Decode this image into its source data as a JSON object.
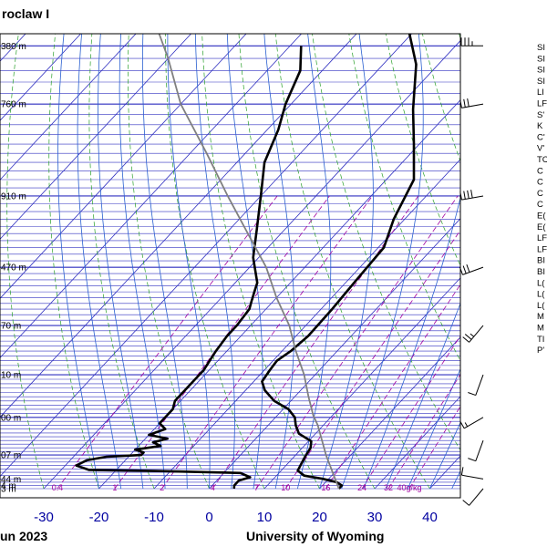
{
  "chart_data": {
    "type": "line",
    "title": "roclaw I",
    "footer_left": "un 2023",
    "footer_right": "University of Wyoming",
    "x_ticks": [
      -30,
      -20,
      -10,
      0,
      10,
      20,
      30,
      40
    ],
    "xlim": [
      -35,
      43
    ],
    "y_tick_labels": [
      {
        "p": 250,
        "label": "380 m"
      },
      {
        "p": 300,
        "label": "760 m"
      },
      {
        "p": 400,
        "label": "910 m"
      },
      {
        "p": 500,
        "label": "470 m"
      },
      {
        "p": 600,
        "label": "70 m"
      },
      {
        "p": 700,
        "label": "10 m"
      },
      {
        "p": 800,
        "label": "00 m"
      },
      {
        "p": 900,
        "label": "07 m"
      },
      {
        "p": 970,
        "label": "44 m"
      },
      {
        "p": 990,
        "label": "4 m"
      },
      {
        "p": 1000,
        "label": "3 m"
      }
    ],
    "mixing_ratio_labels": [
      "0.4",
      "1",
      "2",
      "4",
      "7",
      "10",
      "16",
      "24",
      "32",
      "40g/kg"
    ],
    "series": [
      {
        "role": "temperature",
        "color": "#000000",
        "points": [
          [
            23.5,
            1000
          ],
          [
            23.5,
            990
          ],
          [
            22,
            980
          ],
          [
            19,
            970
          ],
          [
            15,
            960
          ],
          [
            13,
            945
          ],
          [
            12.5,
            925
          ],
          [
            12,
            905
          ],
          [
            11.5,
            880
          ],
          [
            10.5,
            862
          ],
          [
            7,
            842
          ],
          [
            5,
            820
          ],
          [
            3.5,
            800
          ],
          [
            1,
            780
          ],
          [
            -3,
            760
          ],
          [
            -6.5,
            735
          ],
          [
            -8.5,
            715
          ],
          [
            -9,
            690
          ],
          [
            -9.3,
            670
          ],
          [
            -8.4,
            650
          ],
          [
            -7.8,
            620
          ],
          [
            -8,
            570
          ],
          [
            -8.5,
            520
          ],
          [
            -9,
            470
          ],
          [
            -12,
            430
          ],
          [
            -15,
            380
          ],
          [
            -21,
            340
          ],
          [
            -27,
            305
          ],
          [
            -34,
            265
          ],
          [
            -42,
            235
          ],
          [
            -48,
            212
          ]
        ]
      },
      {
        "role": "dewpoint",
        "color": "#000000",
        "points": [
          [
            4.5,
            1000
          ],
          [
            4,
            990
          ],
          [
            4,
            975
          ],
          [
            5.5,
            965
          ],
          [
            3,
            952
          ],
          [
            -13,
            946
          ],
          [
            -25,
            943
          ],
          [
            -28,
            930
          ],
          [
            -27,
            915
          ],
          [
            -24,
            905
          ],
          [
            -18,
            900
          ],
          [
            -18,
            893
          ],
          [
            -20,
            885
          ],
          [
            -16,
            875
          ],
          [
            -18,
            865
          ],
          [
            -16,
            855
          ],
          [
            -20,
            845
          ],
          [
            -18,
            830
          ],
          [
            -20,
            815
          ],
          [
            -20,
            800
          ],
          [
            -20,
            780
          ],
          [
            -21,
            760
          ],
          [
            -21,
            720
          ],
          [
            -21,
            690
          ],
          [
            -22,
            650
          ],
          [
            -22.5,
            620
          ],
          [
            -22.5,
            600
          ],
          [
            -23,
            570
          ],
          [
            -24,
            555
          ],
          [
            -25,
            540
          ],
          [
            -26,
            525
          ],
          [
            -31,
            485
          ],
          [
            -35,
            445
          ],
          [
            -40,
            400
          ],
          [
            -45,
            360
          ],
          [
            -48,
            325
          ],
          [
            -51,
            300
          ],
          [
            -54,
            270
          ],
          [
            -58,
            250
          ]
        ]
      },
      {
        "role": "parcel",
        "color": "#808080",
        "points": [
          [
            23.5,
            1000
          ],
          [
            15.5,
            900
          ],
          [
            9,
            820
          ],
          [
            6.5,
            795
          ],
          [
            2.5,
            750
          ],
          [
            -2,
            700
          ],
          [
            -7.5,
            650
          ],
          [
            -13,
            600
          ],
          [
            -20,
            550
          ],
          [
            -27,
            500
          ],
          [
            -36,
            450
          ],
          [
            -46,
            400
          ],
          [
            -57,
            350
          ],
          [
            -70,
            300
          ],
          [
            -80,
            260
          ],
          [
            -86,
            240
          ]
        ]
      }
    ],
    "wind_barbs": [
      {
        "p": 250,
        "dir": 270,
        "spd": 35
      },
      {
        "p": 300,
        "dir": 260,
        "spd": 30
      },
      {
        "p": 400,
        "dir": 260,
        "spd": 40
      },
      {
        "p": 500,
        "dir": 250,
        "spd": 30
      },
      {
        "p": 600,
        "dir": 220,
        "spd": 25
      },
      {
        "p": 700,
        "dir": 200,
        "spd": 10
      },
      {
        "p": 800,
        "dir": 240,
        "spd": 15
      },
      {
        "p": 860,
        "dir": 200,
        "spd": 10
      },
      {
        "p": 970,
        "dir": 280,
        "spd": 10
      },
      {
        "p": 1000,
        "dir": 220,
        "spd": 10
      }
    ],
    "indices_text": [
      "SI",
      "SI",
      "SI",
      "SI",
      "LI",
      "LF",
      "S'",
      "K",
      "C'",
      "V'",
      "TC",
      "C",
      "C",
      "C",
      "C",
      "E(",
      "E(",
      "LF",
      "LF",
      "BI",
      "BI",
      "L(",
      "L(",
      "L(",
      "M",
      "M",
      "TI",
      "P'"
    ],
    "colors": {
      "isobar": "#3030c0",
      "isotherm": "#3030c0",
      "dry_adiabat": "#2aa02a",
      "moist_adiabat": "#2a60d0",
      "mixing_ratio": "#a000a0",
      "axis_label": "#0000a0"
    }
  }
}
